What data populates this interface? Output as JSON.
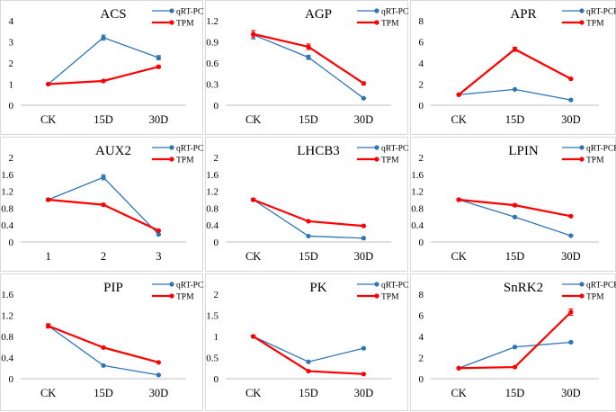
{
  "colors": {
    "qpcr": "#2e75b6",
    "tpm": "#ff0000",
    "axis": "#bfbfbf",
    "text": "#000000",
    "border": "#d9d9d9"
  },
  "chart_data": [
    {
      "type": "line",
      "title": "ACS",
      "categories": [
        "CK",
        "15D",
        "30D"
      ],
      "ylim": [
        0,
        4
      ],
      "yticks": [
        0,
        1,
        2,
        3,
        4
      ],
      "ytick_labels": [
        "0",
        "1",
        "2",
        "3",
        "4"
      ],
      "grid": false,
      "legend": "top-right",
      "series": [
        {
          "name": "qRT-PCR",
          "values": [
            1.0,
            3.2,
            2.25
          ],
          "errors": [
            0.03,
            0.12,
            0.1
          ]
        },
        {
          "name": "TPM",
          "values": [
            1.0,
            1.15,
            1.82
          ],
          "errors": [
            0.03,
            0.05,
            0.06
          ]
        }
      ]
    },
    {
      "type": "line",
      "title": "AGP",
      "categories": [
        "CK",
        "15D",
        "30D"
      ],
      "ylim": [
        0,
        1.2
      ],
      "yticks": [
        0,
        0.3,
        0.6,
        0.9,
        1.2
      ],
      "ytick_labels": [
        "0",
        "0.3",
        "0.6",
        "0.9",
        "1.2"
      ],
      "grid": false,
      "legend": "top-right",
      "series": [
        {
          "name": "qRT-PCR",
          "values": [
            1.0,
            0.68,
            0.1
          ],
          "errors": [
            0.06,
            0.03,
            0.01
          ]
        },
        {
          "name": "TPM",
          "values": [
            1.01,
            0.83,
            0.31
          ],
          "errors": [
            0.05,
            0.04,
            0.02
          ]
        }
      ]
    },
    {
      "type": "line",
      "title": "APR",
      "categories": [
        "CK",
        "15D",
        "30D"
      ],
      "ylim": [
        0,
        8
      ],
      "yticks": [
        0,
        2,
        4,
        6,
        8
      ],
      "ytick_labels": [
        "0",
        "2",
        "4",
        "6",
        "8"
      ],
      "grid": false,
      "legend": "top-right",
      "series": [
        {
          "name": "qRT-PCR",
          "values": [
            1.0,
            1.5,
            0.5
          ],
          "errors": [
            0.05,
            0.06,
            0.04
          ]
        },
        {
          "name": "TPM",
          "values": [
            1.0,
            5.3,
            2.5
          ],
          "errors": [
            0.06,
            0.2,
            0.08
          ]
        }
      ]
    },
    {
      "type": "line",
      "title": "AUX2",
      "categories": [
        "1",
        "2",
        "3"
      ],
      "ylim": [
        0,
        2
      ],
      "yticks": [
        0,
        0.4,
        0.8,
        1.2,
        1.6,
        2
      ],
      "ytick_labels": [
        "0",
        "0.4",
        "0.8",
        "1.2",
        "1.6",
        "2"
      ],
      "grid": false,
      "legend": "top-right",
      "series": [
        {
          "name": "qRT-PCR",
          "values": [
            1.0,
            1.53,
            0.18
          ],
          "errors": [
            0.03,
            0.06,
            0.02
          ]
        },
        {
          "name": "TPM",
          "values": [
            1.0,
            0.88,
            0.27
          ],
          "errors": [
            0.03,
            0.03,
            0.02
          ]
        }
      ]
    },
    {
      "type": "line",
      "title": "LHCB3",
      "categories": [
        "CK",
        "15D",
        "30D"
      ],
      "ylim": [
        0,
        2
      ],
      "yticks": [
        0,
        0.4,
        0.8,
        1.2,
        1.6,
        2
      ],
      "ytick_labels": [
        "0",
        "0.4",
        "0.8",
        "1.2",
        "1.6",
        "2"
      ],
      "grid": false,
      "legend": "top-right",
      "series": [
        {
          "name": "qRT-PCR",
          "values": [
            1.0,
            0.14,
            0.09
          ],
          "errors": [
            0.03,
            0.01,
            0.01
          ]
        },
        {
          "name": "TPM",
          "values": [
            1.0,
            0.49,
            0.38
          ],
          "errors": [
            0.03,
            0.02,
            0.02
          ]
        }
      ]
    },
    {
      "type": "line",
      "title": "LPIN",
      "categories": [
        "CK",
        "15D",
        "30D"
      ],
      "ylim": [
        0,
        2
      ],
      "yticks": [
        0,
        0.4,
        0.8,
        1.2,
        1.6,
        2
      ],
      "ytick_labels": [
        "0",
        "0.4",
        "0.8",
        "1.2",
        "1.6",
        "2"
      ],
      "grid": false,
      "legend": "top-right",
      "series": [
        {
          "name": "qRT-PCR",
          "values": [
            1.0,
            0.59,
            0.15
          ],
          "errors": [
            0.03,
            0.02,
            0.01
          ]
        },
        {
          "name": "TPM",
          "values": [
            1.0,
            0.87,
            0.61
          ],
          "errors": [
            0.03,
            0.03,
            0.02
          ]
        }
      ]
    },
    {
      "type": "line",
      "title": "PIP",
      "categories": [
        "CK",
        "15D",
        "30D"
      ],
      "ylim": [
        0,
        1.6
      ],
      "yticks": [
        0,
        0.4,
        0.8,
        1.2,
        1.6
      ],
      "ytick_labels": [
        "0",
        "0.4",
        "0.8",
        "1.2",
        "1.6"
      ],
      "grid": false,
      "legend": "top-right",
      "series": [
        {
          "name": "qRT-PCR",
          "values": [
            1.0,
            0.25,
            0.07
          ],
          "errors": [
            0.04,
            0.01,
            0.01
          ]
        },
        {
          "name": "TPM",
          "values": [
            1.0,
            0.59,
            0.31
          ],
          "errors": [
            0.04,
            0.02,
            0.01
          ]
        }
      ]
    },
    {
      "type": "line",
      "title": "PK",
      "categories": [
        "CK",
        "15D",
        "30D"
      ],
      "ylim": [
        0,
        2
      ],
      "yticks": [
        0,
        0.5,
        1,
        1.5,
        2
      ],
      "ytick_labels": [
        "0",
        "0.5",
        "1",
        "1.5",
        "2"
      ],
      "grid": false,
      "legend": "top-right",
      "series": [
        {
          "name": "qRT-PCR",
          "values": [
            1.0,
            0.4,
            0.72
          ],
          "errors": [
            0.03,
            0.02,
            0.02
          ]
        },
        {
          "name": "TPM",
          "values": [
            1.0,
            0.18,
            0.11
          ],
          "errors": [
            0.03,
            0.01,
            0.01
          ]
        }
      ]
    },
    {
      "type": "line",
      "title": "SnRK2",
      "categories": [
        "CK",
        "15D",
        "30D"
      ],
      "ylim": [
        0,
        8
      ],
      "yticks": [
        0,
        2,
        4,
        6,
        8
      ],
      "ytick_labels": [
        "0",
        "2",
        "4",
        "6",
        "8"
      ],
      "grid": false,
      "legend": "top-right",
      "series": [
        {
          "name": "qRT-PCR",
          "values": [
            1.0,
            3.0,
            3.45
          ],
          "errors": [
            0.05,
            0.1,
            0.1
          ]
        },
        {
          "name": "TPM",
          "values": [
            1.0,
            1.1,
            6.3
          ],
          "errors": [
            0.05,
            0.05,
            0.3
          ]
        }
      ]
    }
  ]
}
